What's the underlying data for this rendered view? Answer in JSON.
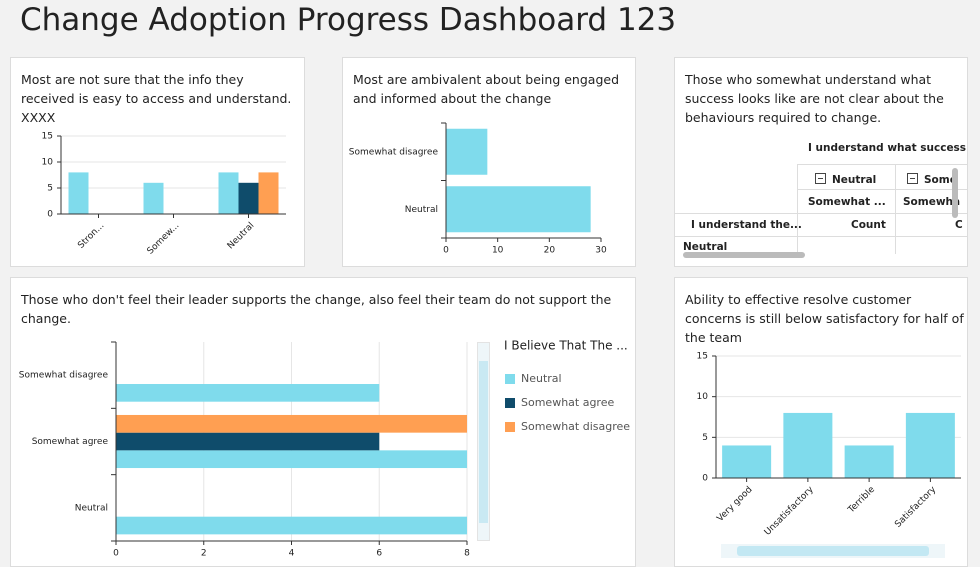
{
  "title": "Change Adoption Progress Dashboard 123",
  "chart_data": [
    {
      "type": "bar",
      "orientation": "vertical",
      "title": "Most are not sure that the info they received is easy to access and understand. XXXX",
      "categories": [
        "Stron...",
        "Somew...",
        "Neutral"
      ],
      "series": [
        {
          "color": "#7fdbec",
          "values": [
            8,
            6,
            8
          ]
        },
        {
          "color": "#0f4c6b",
          "values": [
            null,
            null,
            6
          ]
        },
        {
          "color": "#ff9f52",
          "values": [
            null,
            null,
            8
          ]
        }
      ],
      "ylim": [
        0,
        15
      ],
      "yticks": [
        0,
        5,
        10,
        15
      ],
      "grid": true
    },
    {
      "type": "bar",
      "orientation": "horizontal",
      "title": "Most are ambivalent about being engaged and informed about the change",
      "categories": [
        "Somewhat disagree",
        "Neutral"
      ],
      "values": [
        8,
        28
      ],
      "color": "#7fdbec",
      "xlim": [
        0,
        30
      ],
      "xticks": [
        0,
        10,
        20,
        30
      ],
      "grid": false
    },
    {
      "type": "bar",
      "orientation": "horizontal",
      "title": "Those who don't feel their leader supports the change, also feel their team do not support the change.",
      "categories": [
        "Somewhat disagree",
        "Somewhat agree",
        "Neutral"
      ],
      "series": [
        {
          "name": "Neutral",
          "color": "#7fdbec",
          "values": [
            6,
            8,
            8
          ]
        },
        {
          "name": "Somewhat agree",
          "color": "#0f4c6b",
          "values": [
            null,
            6,
            null
          ]
        },
        {
          "name": "Somewhat disagree",
          "color": "#ff9f52",
          "values": [
            null,
            8,
            null
          ]
        }
      ],
      "legend_title": "I Believe That The ...",
      "xlim": [
        0,
        8
      ],
      "xticks": [
        0,
        2,
        4,
        6,
        8
      ],
      "grid": true
    },
    {
      "type": "bar",
      "orientation": "vertical",
      "title": "Ability to effective resolve customer concerns is still below satisfactory for half of the team",
      "categories": [
        "Very good",
        "Unsatisfactory",
        "Terrible",
        "Satisfactory"
      ],
      "values": [
        4,
        8,
        4,
        8
      ],
      "color": "#7fdbec",
      "ylim": [
        0,
        15
      ],
      "yticks": [
        0,
        5,
        10,
        15
      ],
      "grid": true
    }
  ],
  "pivot_table": {
    "title": "Those who somewhat understand what success looks like are not clear about the behaviours required to change.",
    "column_header": "I understand what success",
    "columns": [
      "Neutral",
      "Some"
    ],
    "subcolumns": [
      "Somewhat ...",
      "Somewha"
    ],
    "row_header": "I understand the...",
    "measures": [
      "Count",
      "C"
    ],
    "rows": [
      "Neutral"
    ]
  }
}
